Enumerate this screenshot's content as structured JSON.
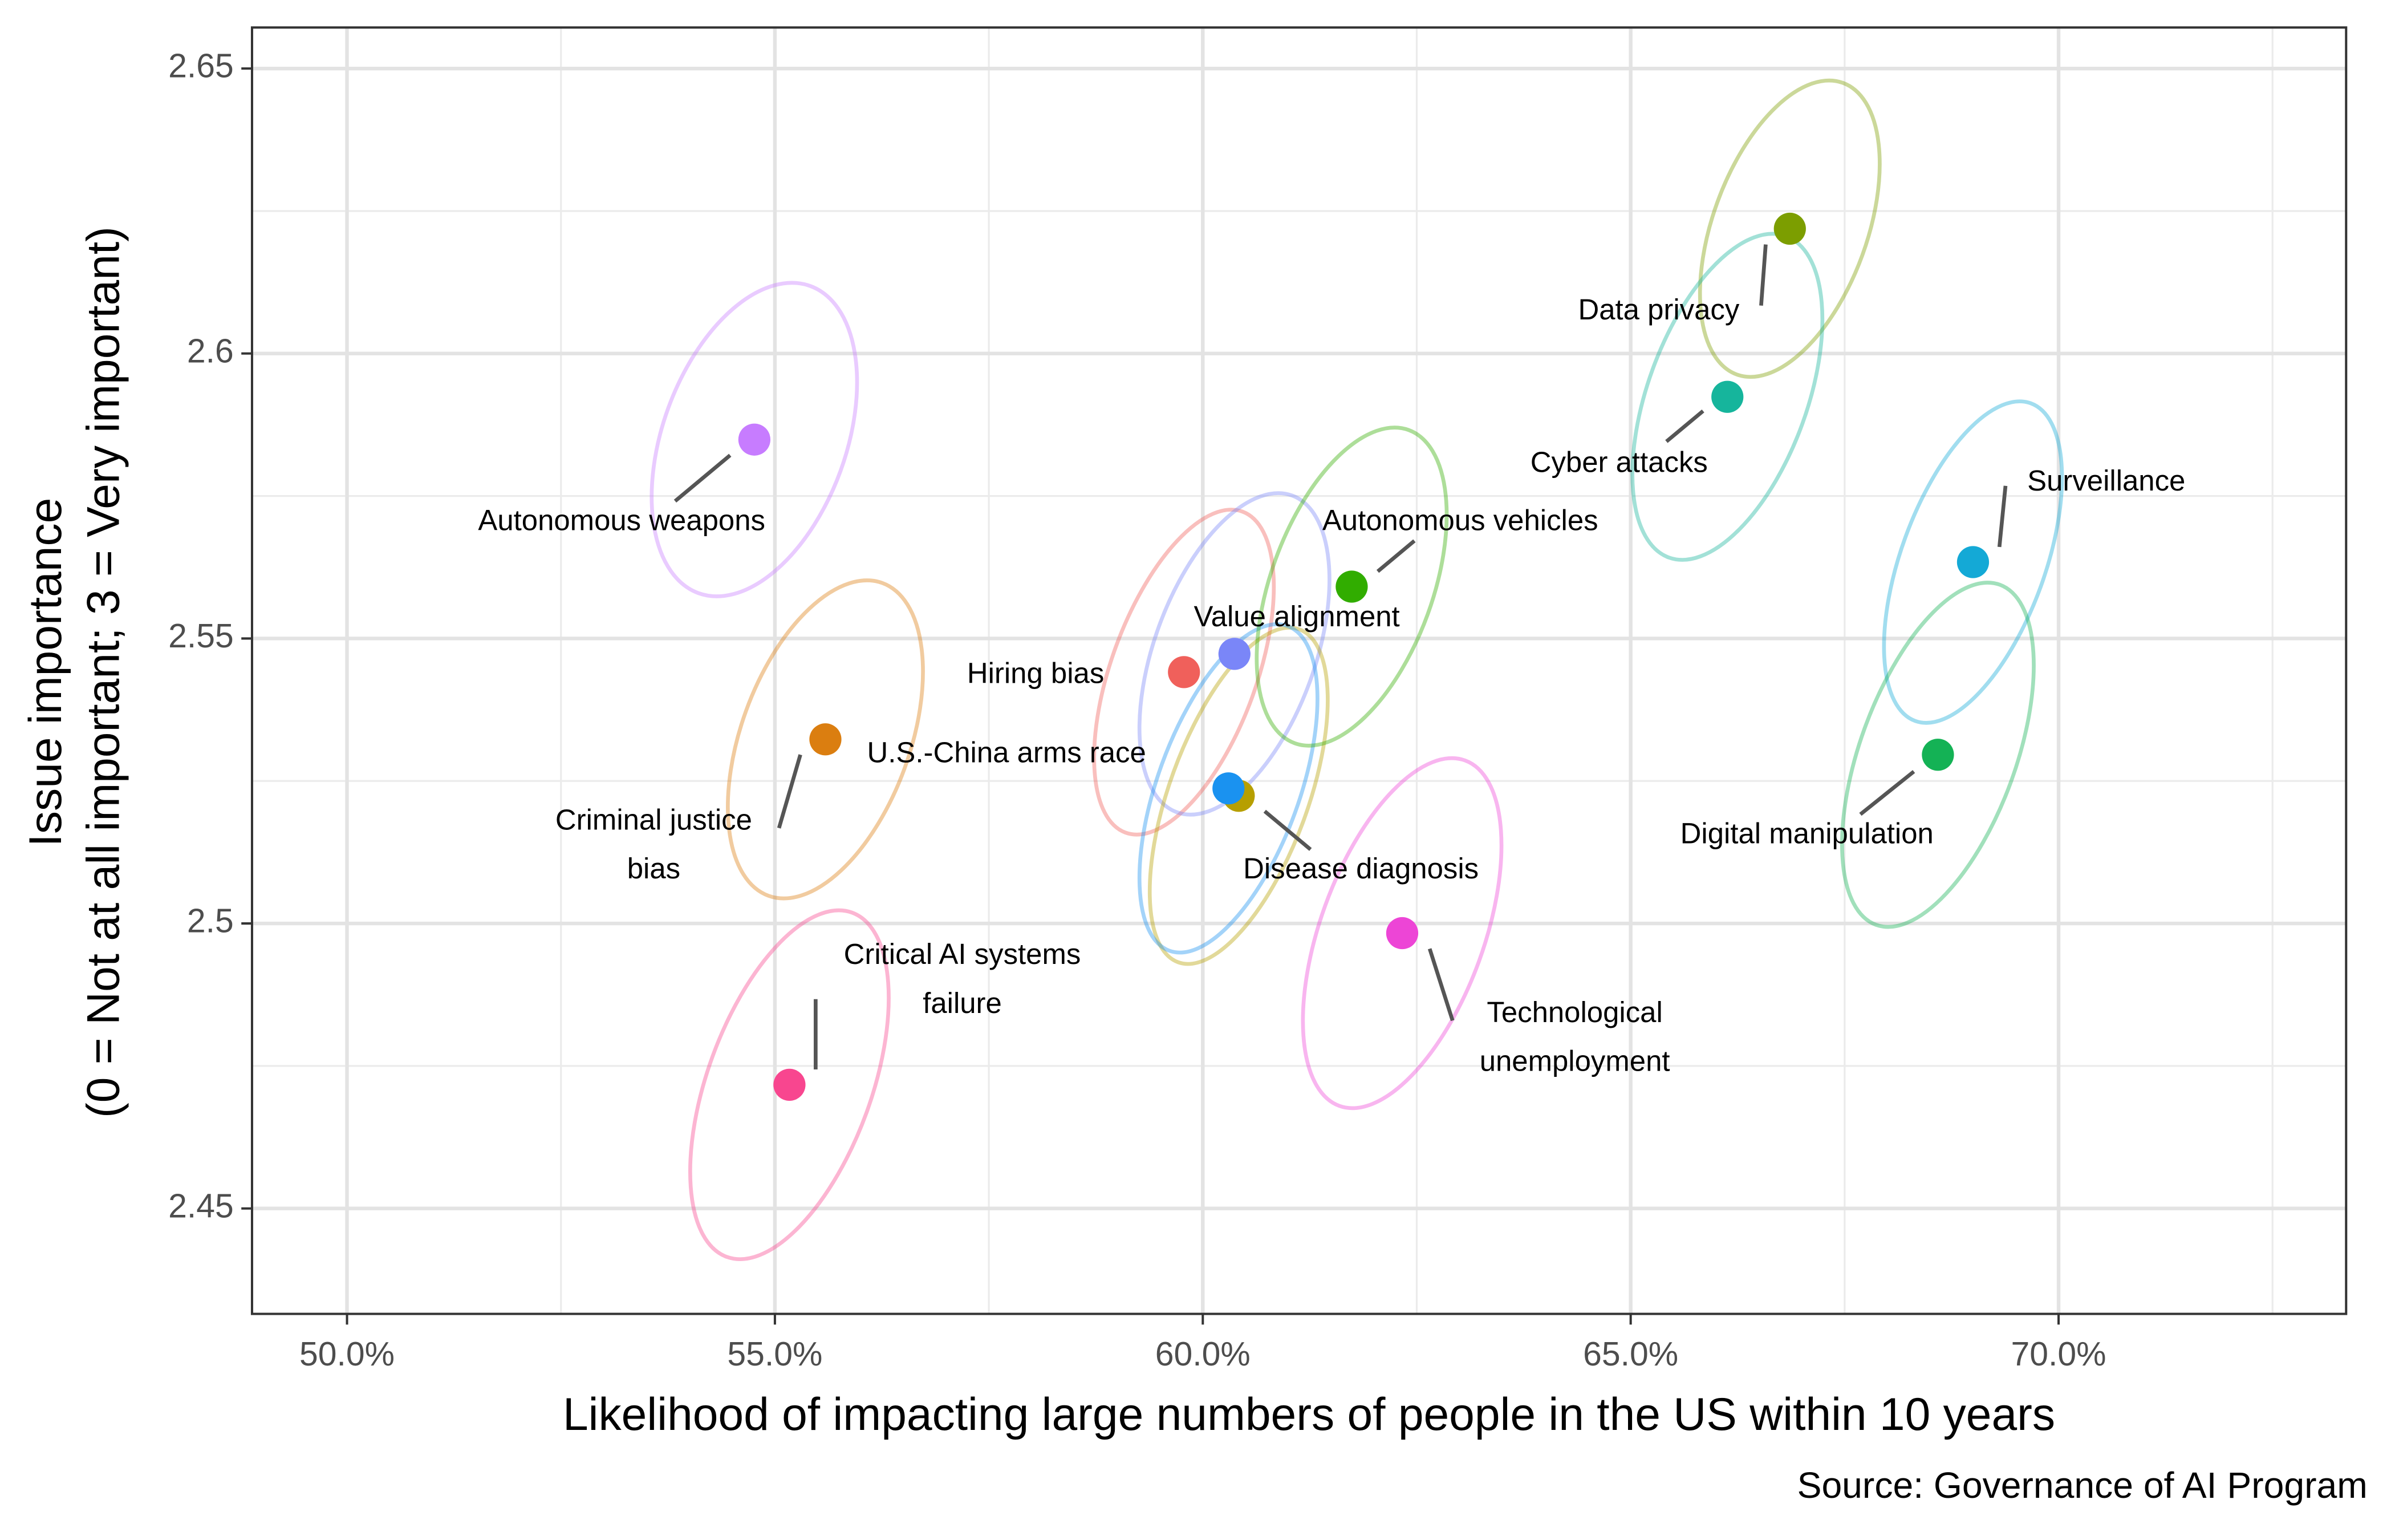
{
  "chart_data": {
    "type": "scatter",
    "xlabel": "Likelihood of impacting large numbers of people in the US within 10 years",
    "ylabel": [
      "Issue importance",
      "(0 = Not at all important; 3 = Very important)"
    ],
    "caption": "Source: Governance of AI Program",
    "xlim": [
      48.89,
      73.36
    ],
    "ylim": [
      2.4315,
      2.6572
    ],
    "xticks": [
      {
        "value": 50,
        "label": "50.0%"
      },
      {
        "value": 55,
        "label": "55.0%"
      },
      {
        "value": 60,
        "label": "60.0%"
      },
      {
        "value": 65,
        "label": "65.0%"
      },
      {
        "value": 70,
        "label": "70.0%"
      }
    ],
    "yticks": [
      2.45,
      2.5,
      2.55,
      2.6,
      2.65
    ],
    "x_minor_ticks": [
      52.5,
      57.5,
      62.5,
      67.5,
      72.5
    ],
    "y_minor_ticks": [
      2.475,
      2.525,
      2.575,
      2.625
    ],
    "grid": true,
    "names": [
      "Autonomous weapons",
      "Criminal justice bias",
      "Critical AI systems failure",
      "Hiring bias",
      "Value alignment",
      "U.S.-China arms race",
      "Disease diagnosis",
      "Autonomous vehicles",
      "Technological unemployment",
      "Data privacy",
      "Cyber attacks",
      "Surveillance",
      "Digital manipulation"
    ],
    "colors": [
      "#C77CFF",
      "#DB7E10",
      "#F8468F",
      "#F0605B",
      "#7A86F8",
      "#B79F00",
      "#1A92F0",
      "#31AD00",
      "#ED45D6",
      "#7C9E00",
      "#16B59C",
      "#14A9D6",
      "#14B255"
    ],
    "x": [
      54.76,
      55.59,
      55.17,
      59.78,
      60.37,
      60.42,
      60.3,
      61.74,
      62.33,
      66.86,
      66.13,
      69.0,
      68.59
    ],
    "y": [
      2.5849,
      2.5323,
      2.4717,
      2.5441,
      2.5473,
      2.5224,
      2.5237,
      2.5591,
      2.4983,
      2.6219,
      2.5924,
      2.5634,
      2.5296
    ],
    "x_err": [
      1.2,
      1.14,
      1.16,
      1.05,
      1.11,
      1.04,
      1.04,
      1.11,
      1.16,
      1.05,
      1.11,
      1.04,
      1.12
    ],
    "y_err": [
      0.0275,
      0.0279,
      0.0306,
      0.0285,
      0.0282,
      0.0295,
      0.0288,
      0.0279,
      0.0307,
      0.026,
      0.0286,
      0.0282,
      0.0302
    ]
  }
}
